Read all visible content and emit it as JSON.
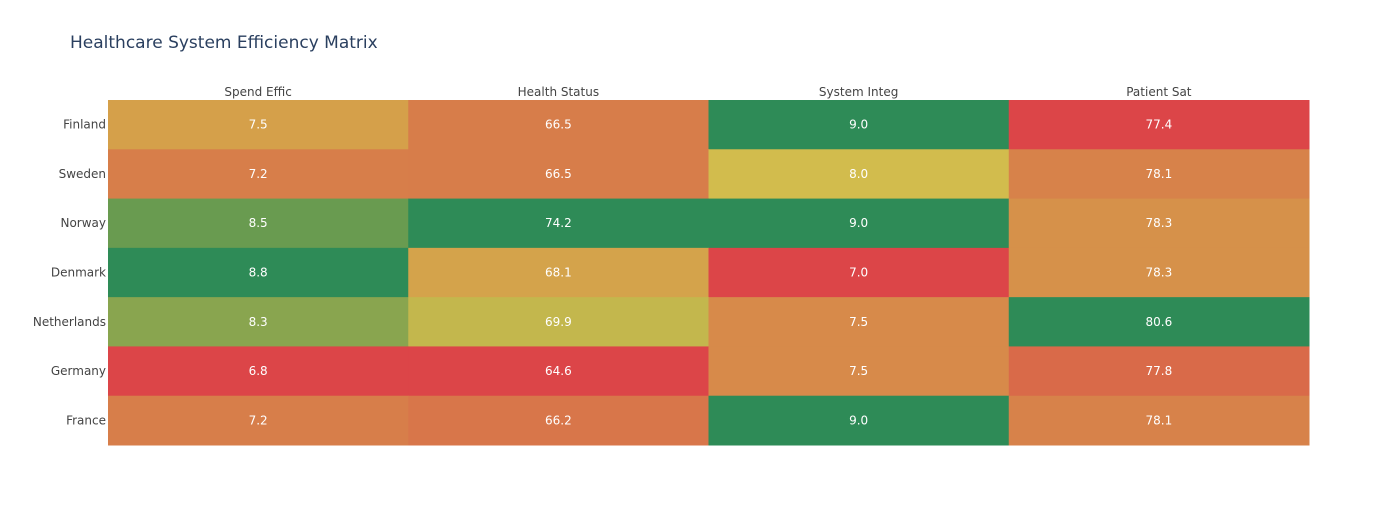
{
  "chart_data": {
    "type": "heatmap",
    "title": "Healthcare System Efficiency Matrix",
    "columns": [
      "Spend Effic",
      "Health Status",
      "System Integ",
      "Patient Sat"
    ],
    "rows": [
      "Finland",
      "Sweden",
      "Norway",
      "Denmark",
      "Netherlands",
      "Germany",
      "France"
    ],
    "values": [
      [
        7.5,
        66.5,
        9.0,
        77.4
      ],
      [
        7.2,
        66.5,
        8.0,
        78.1
      ],
      [
        8.5,
        74.2,
        9.0,
        78.3
      ],
      [
        8.8,
        68.1,
        7.0,
        78.3
      ],
      [
        8.3,
        69.9,
        7.5,
        80.6
      ],
      [
        6.8,
        64.6,
        7.5,
        77.8
      ],
      [
        7.2,
        66.2,
        9.0,
        78.1
      ]
    ],
    "value_labels": [
      [
        "7.5",
        "66.5",
        "9.0",
        "77.4"
      ],
      [
        "7.2",
        "66.5",
        "8.0",
        "78.1"
      ],
      [
        "8.5",
        "74.2",
        "9.0",
        "78.3"
      ],
      [
        "8.8",
        "68.1",
        "7.0",
        "78.3"
      ],
      [
        "8.3",
        "69.9",
        "7.5",
        "80.6"
      ],
      [
        "6.8",
        "64.6",
        "7.5",
        "77.8"
      ],
      [
        "7.2",
        "66.2",
        "9.0",
        "78.1"
      ]
    ],
    "column_axis_position": "top",
    "normalization": "per-column",
    "colorscale": [
      "#dc4548",
      "#d8764a",
      "#d59d4a",
      "#d2bc4d",
      "#a3ad4e",
      "#6f9d4f",
      "#2e8b57"
    ],
    "cell_text_color": "#ffffff",
    "label_color": "#444444",
    "title_color": "#2a3f5f",
    "background": "#ffffff"
  }
}
